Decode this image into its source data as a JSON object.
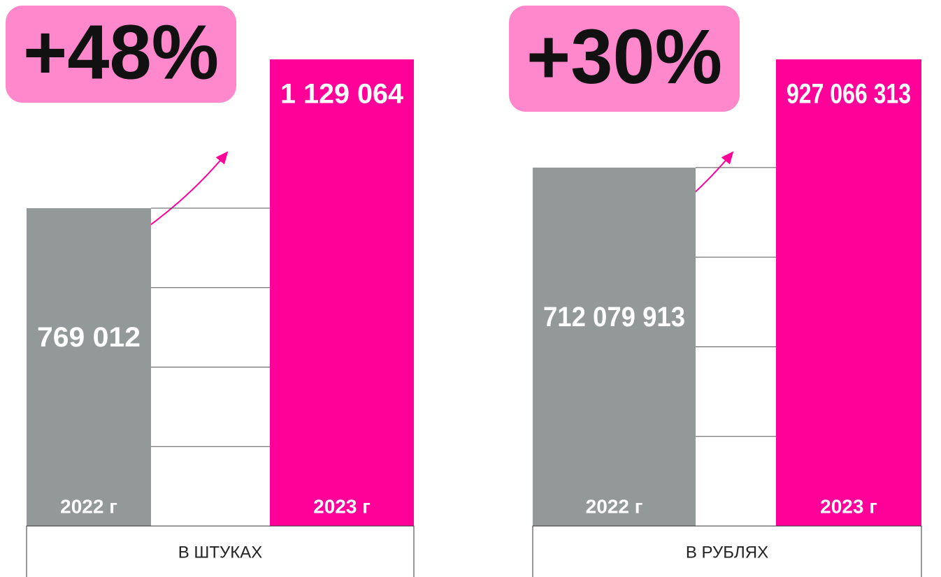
{
  "chart_data": [
    {
      "type": "bar",
      "annotation": "+48%",
      "xlabel": "В ШТУКАХ",
      "categories": [
        "2022 г",
        "2023 г"
      ],
      "values": [
        769012,
        1129064
      ],
      "value_labels": [
        "769 012",
        "1 129 064"
      ],
      "colors": [
        "#939898",
        "#ff0099"
      ]
    },
    {
      "type": "bar",
      "annotation": "+30%",
      "xlabel": "В РУБЛЯХ",
      "categories": [
        "2022 г",
        "2023 г"
      ],
      "values": [
        712079913,
        927066313
      ],
      "value_labels": [
        "712 079 913",
        "927 066 313"
      ],
      "colors": [
        "#939898",
        "#ff0099"
      ]
    }
  ]
}
